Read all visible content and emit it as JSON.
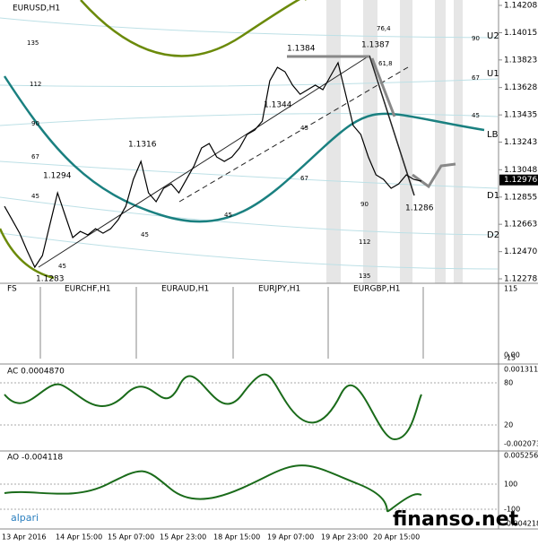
{
  "chart_data": {
    "type": "line",
    "title": "EURUSD,H1",
    "series": [
      {
        "name": "EURUSD",
        "color": "#000000",
        "values": [
          1.1279,
          1.12695,
          1.126,
          1.12474,
          1.1236,
          1.12442,
          1.12663,
          1.12885,
          1.12727,
          1.12569,
          1.12613,
          1.12588,
          1.12632,
          1.126,
          1.12632,
          1.12695,
          1.1279,
          1.1298,
          1.13107,
          1.12885,
          1.12822,
          1.12917,
          1.12948,
          1.12885,
          1.1298,
          1.13075,
          1.13202,
          1.13233,
          1.13138,
          1.13107,
          1.13138,
          1.13202,
          1.13297,
          1.13328,
          1.13391,
          1.13676,
          1.13771,
          1.1374,
          1.13645,
          1.13581,
          1.13613,
          1.13645,
          1.13613,
          1.13708,
          1.13803,
          1.13581,
          1.1336,
          1.13297,
          1.13138,
          1.13012,
          1.1298,
          1.12917,
          1.12948,
          1.13012,
          1.1298,
          1.12967
        ]
      }
    ],
    "ylim": [
      1.12278,
      1.14208
    ],
    "yticks": [
      1.14208,
      1.14015,
      1.13823,
      1.13628,
      1.13435,
      1.13243,
      1.13048,
      1.12855,
      1.12663,
      {
        "value": 1.1247,
        "label": "1.12470"
      },
      1.12278
    ],
    "last_price": 1.12976,
    "price_notes": [
      "1.1283",
      "1.1294",
      "1.1316",
      "1.1344",
      "1.1384",
      "1.1387",
      "1.1286"
    ],
    "levels": [
      "U2",
      "U1",
      "LB",
      "D1",
      "D2"
    ],
    "fib_labels": [
      "135",
      "112",
      "90",
      "67",
      "45",
      "45",
      "45",
      "45",
      "45",
      "67",
      "90",
      "112",
      "135",
      "90",
      "67",
      "45",
      "76,4",
      "61,8"
    ]
  },
  "panels": [
    {
      "titles": [
        "FS",
        "EURCHF,H1",
        "EURAUD,H1",
        "EURJPY,H1",
        "EURGBP,H1"
      ],
      "scale": [
        "115",
        "0.00",
        "-15"
      ]
    },
    {
      "titles": [
        "AC 0.0004870"
      ],
      "scale": [
        "0.001311",
        "80",
        "20",
        "-0.002073"
      ]
    },
    {
      "titles": [
        "AO -0.004118"
      ],
      "scale": [
        "0.005256",
        "100",
        "-100",
        "-0.004218"
      ]
    }
  ],
  "time_axis": [
    "13 Apr 2016",
    "14 Apr 15:00",
    "15 Apr 07:00",
    "15 Apr 23:00",
    "18 Apr 15:00",
    "19 Apr 07:00",
    "19 Apr 23:00",
    "20 Apr 15:00"
  ],
  "watermarks": [
    "alpari",
    "finanso.net"
  ]
}
